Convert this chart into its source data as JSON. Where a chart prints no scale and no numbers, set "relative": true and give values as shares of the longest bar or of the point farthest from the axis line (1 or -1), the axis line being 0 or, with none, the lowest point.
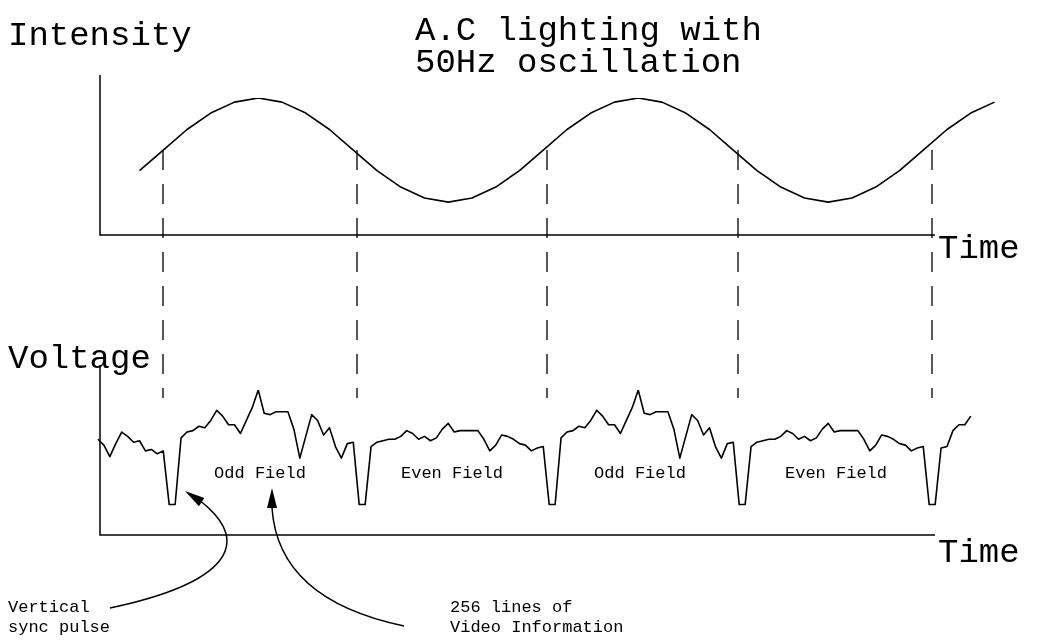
{
  "chart_data": [
    {
      "type": "line",
      "title": "A.C lighting with 50Hz oscillation",
      "ylabel": "Intensity",
      "xlabel": "Time",
      "relative": true,
      "marker": "none",
      "line_style": "solid",
      "categories": [
        null,
        null,
        null,
        null,
        null,
        null,
        null,
        null,
        null,
        null,
        null,
        null,
        null,
        null,
        null,
        null,
        null,
        null,
        null,
        null,
        null,
        null,
        null,
        null,
        null,
        null,
        null,
        null,
        null,
        null,
        null,
        null,
        null,
        null,
        null,
        null,
        null,
        null,
        null
      ],
      "series": [
        {
          "color": "#000000",
          "values": [
            null,
            null,
            0.47,
            0.62,
            0.77,
            0.89,
            0.97,
            1,
            0.97,
            0.89,
            0.77,
            0.62,
            0.47,
            0.35,
            0.27,
            0.24,
            0.27,
            0.35,
            0.47,
            0.62,
            0.77,
            0.89,
            0.97,
            1,
            0.97,
            0.89,
            0.77,
            0.62,
            0.47,
            0.35,
            0.27,
            0.24,
            0.27,
            0.35,
            0.47,
            0.62,
            0.77,
            0.89,
            0.97
          ]
        }
      ]
    },
    {
      "type": "line",
      "ylabel": "Voltage",
      "xlabel": "Time",
      "relative": true,
      "marker": "none",
      "line_style": "solid",
      "annotations": [
        "Odd Field",
        "Even Field",
        "Odd Field",
        "Even Field",
        "Vertical sync pulse",
        "256 lines of Video Information"
      ],
      "categories": [
        null,
        null,
        null,
        null,
        null,
        null,
        null,
        null,
        null,
        null,
        null,
        null,
        null,
        null,
        null,
        null,
        null,
        null,
        null,
        null,
        null,
        null,
        null,
        null,
        null,
        null,
        null,
        null,
        null,
        null,
        null,
        null,
        null,
        null,
        null,
        null,
        null,
        null,
        null,
        null,
        null,
        null,
        null,
        null,
        null,
        null,
        null,
        null,
        null,
        null,
        null,
        null,
        null,
        null,
        null,
        null,
        null,
        null,
        null,
        null,
        null,
        null,
        null,
        null,
        null,
        null,
        null,
        null,
        null,
        null,
        null,
        null,
        null,
        null,
        null,
        null,
        null,
        null,
        null,
        null,
        null,
        null,
        null,
        null,
        null,
        null,
        null,
        null,
        null,
        null,
        null,
        null,
        null,
        null,
        null,
        null,
        null,
        null,
        null,
        null,
        null,
        null,
        null,
        null,
        null,
        null,
        null,
        null,
        null,
        null,
        null,
        null,
        null,
        null,
        null,
        null,
        null,
        null,
        null,
        null,
        null,
        null,
        null,
        null,
        null,
        null,
        null,
        null,
        null,
        null,
        null,
        null,
        null,
        null,
        null,
        null,
        null,
        null,
        null,
        null,
        null,
        null,
        null,
        null,
        null,
        null,
        null,
        null,
        null,
        null,
        null,
        null,
        null
      ],
      "series": [
        {
          "color": "#000000",
          "values": [
            null,
            0.66,
            0.62,
            0.54,
            0.63,
            0.71,
            0.68,
            0.64,
            0.65,
            0.58,
            0.59,
            0.56,
            0.58,
            0.21,
            0.21,
            0.67,
            0.71,
            0.72,
            0.75,
            0.74,
            0.79,
            0.86,
            0.82,
            0.76,
            0.76,
            0.7,
            0.79,
            0.88,
            1.0,
            0.84,
            0.83,
            0.85,
            0.85,
            0.85,
            0.73,
            0.53,
            0.68,
            0.83,
            0.79,
            0.69,
            0.74,
            0.61,
            0.53,
            0.63,
            0.64,
            0.21,
            0.21,
            0.61,
            0.64,
            0.65,
            0.66,
            0.66,
            0.68,
            0.72,
            0.7,
            0.66,
            0.68,
            0.65,
            0.67,
            0.73,
            0.77,
            0.71,
            0.72,
            0.72,
            0.72,
            0.72,
            0.66,
            0.58,
            0.62,
            0.69,
            0.68,
            0.66,
            0.63,
            0.62,
            0.58,
            0.6,
            0.61,
            0.21,
            0.21,
            0.67,
            0.71,
            0.72,
            0.75,
            0.74,
            0.79,
            0.86,
            0.82,
            0.76,
            0.76,
            0.7,
            0.79,
            0.88,
            1.0,
            0.84,
            0.83,
            0.85,
            0.85,
            0.85,
            0.73,
            0.53,
            0.68,
            0.83,
            0.79,
            0.69,
            0.74,
            0.61,
            0.53,
            0.63,
            0.64,
            0.21,
            0.21,
            0.61,
            0.64,
            0.65,
            0.66,
            0.66,
            0.68,
            0.72,
            0.7,
            0.66,
            0.68,
            0.65,
            0.67,
            0.73,
            0.77,
            0.71,
            0.72,
            0.72,
            0.72,
            0.72,
            0.66,
            0.58,
            0.62,
            0.69,
            0.68,
            0.66,
            0.63,
            0.62,
            0.58,
            0.6,
            0.61,
            0.21,
            0.21,
            0.6,
            0.61,
            0.72,
            0.76,
            0.76,
            0.82,
            null,
            null,
            null,
            null
          ]
        }
      ]
    }
  ]
}
